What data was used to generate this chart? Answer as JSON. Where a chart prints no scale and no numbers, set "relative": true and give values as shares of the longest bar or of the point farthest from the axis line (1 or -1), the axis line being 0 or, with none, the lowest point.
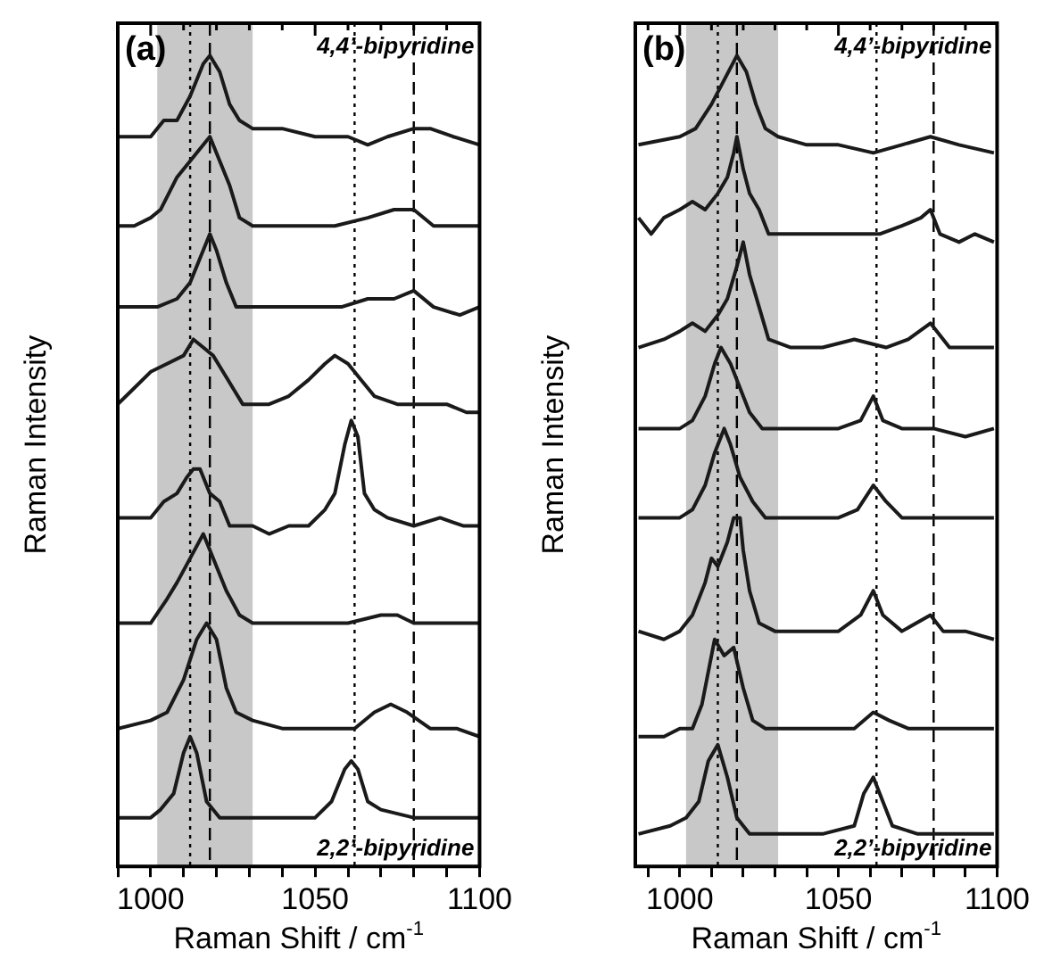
{
  "chart_data": [
    {
      "type": "line",
      "relative": true,
      "xlabel": "Raman Shift / cm$^{-1}$",
      "ylabel": "Raman Intensity",
      "annotations": [
        "(a)",
        "4,4’-bipyridine",
        "2,2’-bipyridine"
      ],
      "xlim": [
        990,
        1100
      ],
      "xticks": [
        {
          "value": 990,
          "label": null
        },
        1000,
        {
          "value": 1010,
          "label": null
        },
        {
          "value": 1020,
          "label": null
        },
        {
          "value": 1030,
          "label": null
        },
        {
          "value": 1040,
          "label": null
        },
        1050,
        {
          "value": 1060,
          "label": null
        },
        {
          "value": 1070,
          "label": null
        },
        {
          "value": 1080,
          "label": null
        },
        {
          "value": 1090,
          "label": null
        },
        1100
      ],
      "bands": [
        {
          "axis": "x",
          "from": 1002,
          "to": 1031,
          "color": "#c8c8c8"
        }
      ],
      "ref_lines": [
        {
          "axis": "x",
          "value": 1012,
          "line_style": "dotted"
        },
        {
          "axis": "x",
          "value": 1018,
          "line_style": "dashed"
        },
        {
          "axis": "x",
          "value": 1062,
          "line_style": "dotted"
        },
        {
          "axis": "x",
          "value": 1080,
          "line_style": "dashed"
        }
      ],
      "series": [
        {
          "color": "#1a1a1a",
          "x": [
            990,
            1000,
            1004,
            1008,
            1012,
            1016,
            1018,
            1021,
            1024,
            1027,
            1031,
            1040,
            1050,
            1060,
            1066,
            1072,
            1080,
            1085,
            1092,
            1100
          ],
          "values": [
            0.9,
            0.9,
            0.92,
            0.92,
            0.95,
            0.99,
            1.0,
            0.98,
            0.94,
            0.92,
            0.91,
            0.91,
            0.9,
            0.9,
            0.89,
            0.9,
            0.91,
            0.91,
            0.9,
            0.89
          ]
        },
        {
          "color": "#1a1a1a",
          "x": [
            990,
            995,
            1000,
            1003,
            1008,
            1012,
            1016,
            1018,
            1021,
            1024,
            1027,
            1031,
            1040,
            1048,
            1056,
            1066,
            1074,
            1080,
            1086,
            1094,
            1100
          ],
          "values": [
            0.79,
            0.79,
            0.8,
            0.81,
            0.85,
            0.87,
            0.89,
            0.9,
            0.87,
            0.84,
            0.8,
            0.79,
            0.79,
            0.79,
            0.79,
            0.8,
            0.81,
            0.81,
            0.79,
            0.79,
            0.79
          ]
        },
        {
          "color": "#1a1a1a",
          "x": [
            990,
            996,
            1002,
            1008,
            1012,
            1015,
            1018,
            1020,
            1023,
            1026,
            1031,
            1040,
            1050,
            1058,
            1066,
            1074,
            1080,
            1086,
            1094,
            1100
          ],
          "values": [
            0.69,
            0.69,
            0.69,
            0.7,
            0.72,
            0.75,
            0.78,
            0.76,
            0.72,
            0.69,
            0.69,
            0.69,
            0.69,
            0.69,
            0.7,
            0.7,
            0.71,
            0.69,
            0.68,
            0.69
          ]
        },
        {
          "color": "#1a1a1a",
          "x": [
            990,
            995,
            1000,
            1005,
            1010,
            1013,
            1016,
            1019,
            1022,
            1025,
            1028,
            1031,
            1036,
            1042,
            1048,
            1053,
            1056,
            1060,
            1064,
            1068,
            1075,
            1082,
            1090,
            1096,
            1100
          ],
          "values": [
            0.57,
            0.59,
            0.61,
            0.62,
            0.63,
            0.65,
            0.64,
            0.63,
            0.61,
            0.59,
            0.57,
            0.57,
            0.57,
            0.58,
            0.6,
            0.62,
            0.63,
            0.62,
            0.6,
            0.58,
            0.57,
            0.57,
            0.57,
            0.56,
            0.56
          ]
        },
        {
          "color": "#1a1a1a",
          "x": [
            990,
            996,
            1000,
            1004,
            1008,
            1011,
            1013,
            1015,
            1018,
            1021,
            1024,
            1028,
            1031,
            1036,
            1042,
            1048,
            1053,
            1056,
            1059,
            1061,
            1063,
            1065,
            1068,
            1072,
            1080,
            1088,
            1095,
            1100
          ],
          "values": [
            0.43,
            0.43,
            0.43,
            0.45,
            0.46,
            0.48,
            0.49,
            0.49,
            0.46,
            0.45,
            0.42,
            0.42,
            0.42,
            0.41,
            0.42,
            0.42,
            0.44,
            0.46,
            0.52,
            0.55,
            0.53,
            0.46,
            0.44,
            0.43,
            0.42,
            0.43,
            0.42,
            0.42
          ]
        },
        {
          "color": "#1a1a1a",
          "x": [
            990,
            1000,
            1005,
            1008,
            1012,
            1016,
            1019,
            1023,
            1027,
            1031,
            1040,
            1050,
            1060,
            1070,
            1075,
            1080,
            1090,
            1100
          ],
          "values": [
            0.3,
            0.3,
            0.33,
            0.35,
            0.38,
            0.41,
            0.38,
            0.34,
            0.31,
            0.3,
            0.3,
            0.3,
            0.3,
            0.31,
            0.31,
            0.3,
            0.3,
            0.3
          ]
        },
        {
          "color": "#1a1a1a",
          "x": [
            990,
            1000,
            1005,
            1010,
            1014,
            1017,
            1020,
            1023,
            1026,
            1031,
            1040,
            1050,
            1058,
            1062,
            1068,
            1073,
            1078,
            1085,
            1093,
            1100
          ],
          "values": [
            0.17,
            0.18,
            0.19,
            0.23,
            0.28,
            0.3,
            0.28,
            0.22,
            0.19,
            0.18,
            0.17,
            0.17,
            0.17,
            0.17,
            0.19,
            0.2,
            0.19,
            0.17,
            0.17,
            0.16
          ]
        },
        {
          "color": "#1a1a1a",
          "x": [
            990,
            1000,
            1003,
            1007,
            1010,
            1012,
            1014,
            1017,
            1021,
            1031,
            1040,
            1050,
            1055,
            1059,
            1061,
            1063,
            1066,
            1070,
            1080,
            1100
          ],
          "values": [
            0.06,
            0.06,
            0.07,
            0.09,
            0.14,
            0.16,
            0.14,
            0.08,
            0.06,
            0.06,
            0.06,
            0.06,
            0.08,
            0.12,
            0.13,
            0.12,
            0.08,
            0.07,
            0.06,
            0.06
          ]
        }
      ]
    },
    {
      "type": "line",
      "relative": true,
      "xlabel": "Raman Shift / cm$^{-1}$",
      "ylabel": "Raman Intensity",
      "annotations": [
        "(b)",
        "4,4’-bipyridine",
        "2,2’-bipyridine"
      ],
      "xlim": [
        986,
        1100
      ],
      "xticks": [
        {
          "value": 990,
          "label": null
        },
        1000,
        {
          "value": 1010,
          "label": null
        },
        {
          "value": 1020,
          "label": null
        },
        {
          "value": 1030,
          "label": null
        },
        {
          "value": 1040,
          "label": null
        },
        1050,
        {
          "value": 1060,
          "label": null
        },
        {
          "value": 1070,
          "label": null
        },
        {
          "value": 1080,
          "label": null
        },
        {
          "value": 1090,
          "label": null
        },
        1100
      ],
      "bands": [
        {
          "axis": "x",
          "from": 1002,
          "to": 1031,
          "color": "#c8c8c8"
        }
      ],
      "ref_lines": [
        {
          "axis": "x",
          "value": 1012,
          "line_style": "dotted"
        },
        {
          "axis": "x",
          "value": 1018,
          "line_style": "dashed"
        },
        {
          "axis": "x",
          "value": 1062,
          "line_style": "dotted"
        },
        {
          "axis": "x",
          "value": 1080,
          "line_style": "dashed"
        }
      ],
      "series": [
        {
          "color": "#1a1a1a",
          "x": [
            987,
            1000,
            1005,
            1010,
            1014,
            1018,
            1021,
            1024,
            1027,
            1031,
            1040,
            1050,
            1061,
            1070,
            1079,
            1088,
            1099
          ],
          "values": [
            0.89,
            0.9,
            0.91,
            0.94,
            0.97,
            1.0,
            0.98,
            0.94,
            0.91,
            0.9,
            0.89,
            0.89,
            0.88,
            0.89,
            0.9,
            0.89,
            0.88
          ]
        },
        {
          "color": "#1a1a1a",
          "x": [
            987,
            991,
            995,
            1000,
            1004,
            1008,
            1012,
            1015,
            1017,
            1018,
            1020,
            1022,
            1025,
            1028,
            1033,
            1040,
            1048,
            1055,
            1063,
            1070,
            1076,
            1079,
            1082,
            1088,
            1093,
            1099
          ],
          "values": [
            0.8,
            0.78,
            0.8,
            0.81,
            0.82,
            0.81,
            0.83,
            0.85,
            0.88,
            0.9,
            0.86,
            0.83,
            0.81,
            0.78,
            0.78,
            0.78,
            0.78,
            0.78,
            0.78,
            0.79,
            0.8,
            0.81,
            0.78,
            0.77,
            0.78,
            0.77
          ]
        },
        {
          "color": "#1a1a1a",
          "x": [
            987,
            995,
            1000,
            1004,
            1008,
            1012,
            1015,
            1018,
            1020,
            1022,
            1025,
            1028,
            1035,
            1045,
            1055,
            1065,
            1072,
            1079,
            1085,
            1092,
            1099
          ],
          "values": [
            0.64,
            0.65,
            0.66,
            0.67,
            0.66,
            0.68,
            0.7,
            0.74,
            0.77,
            0.73,
            0.69,
            0.65,
            0.64,
            0.64,
            0.65,
            0.64,
            0.65,
            0.67,
            0.64,
            0.64,
            0.64
          ]
        },
        {
          "color": "#1a1a1a",
          "x": [
            987,
            995,
            1000,
            1004,
            1008,
            1011,
            1013,
            1016,
            1019,
            1022,
            1026,
            1031,
            1040,
            1050,
            1057,
            1061,
            1064,
            1070,
            1080,
            1090,
            1099
          ],
          "values": [
            0.54,
            0.54,
            0.54,
            0.55,
            0.58,
            0.62,
            0.64,
            0.62,
            0.59,
            0.56,
            0.54,
            0.54,
            0.54,
            0.54,
            0.55,
            0.58,
            0.55,
            0.54,
            0.54,
            0.53,
            0.54
          ]
        },
        {
          "color": "#1a1a1a",
          "x": [
            987,
            995,
            1000,
            1004,
            1008,
            1011,
            1014,
            1016,
            1019,
            1023,
            1027,
            1031,
            1040,
            1050,
            1056,
            1061,
            1065,
            1070,
            1080,
            1090,
            1099
          ],
          "values": [
            0.43,
            0.43,
            0.43,
            0.44,
            0.47,
            0.51,
            0.54,
            0.52,
            0.48,
            0.45,
            0.43,
            0.43,
            0.43,
            0.43,
            0.44,
            0.47,
            0.45,
            0.43,
            0.43,
            0.43,
            0.43
          ]
        },
        {
          "color": "#1a1a1a",
          "x": [
            987,
            995,
            1000,
            1004,
            1008,
            1010,
            1012,
            1015,
            1017,
            1019,
            1020,
            1022,
            1025,
            1030,
            1040,
            1050,
            1057,
            1061,
            1064,
            1070,
            1079,
            1083,
            1090,
            1099
          ],
          "values": [
            0.29,
            0.28,
            0.29,
            0.31,
            0.35,
            0.38,
            0.37,
            0.4,
            0.43,
            0.43,
            0.39,
            0.34,
            0.3,
            0.29,
            0.29,
            0.29,
            0.31,
            0.34,
            0.31,
            0.29,
            0.31,
            0.29,
            0.29,
            0.28
          ]
        },
        {
          "color": "#1a1a1a",
          "x": [
            987,
            995,
            1000,
            1004,
            1007,
            1011,
            1014,
            1017,
            1020,
            1023,
            1027,
            1035,
            1045,
            1055,
            1061,
            1066,
            1072,
            1080,
            1090,
            1099
          ],
          "values": [
            0.16,
            0.16,
            0.17,
            0.17,
            0.2,
            0.28,
            0.26,
            0.27,
            0.22,
            0.18,
            0.17,
            0.17,
            0.17,
            0.17,
            0.19,
            0.18,
            0.17,
            0.17,
            0.17,
            0.17
          ]
        },
        {
          "color": "#1a1a1a",
          "x": [
            987,
            997,
            1002,
            1006,
            1009,
            1012,
            1015,
            1018,
            1022,
            1031,
            1045,
            1055,
            1058,
            1061,
            1064,
            1067,
            1075,
            1090,
            1099
          ],
          "values": [
            0.04,
            0.05,
            0.06,
            0.08,
            0.13,
            0.15,
            0.11,
            0.06,
            0.04,
            0.04,
            0.04,
            0.05,
            0.09,
            0.11,
            0.08,
            0.05,
            0.04,
            0.04,
            0.04
          ]
        }
      ]
    }
  ]
}
